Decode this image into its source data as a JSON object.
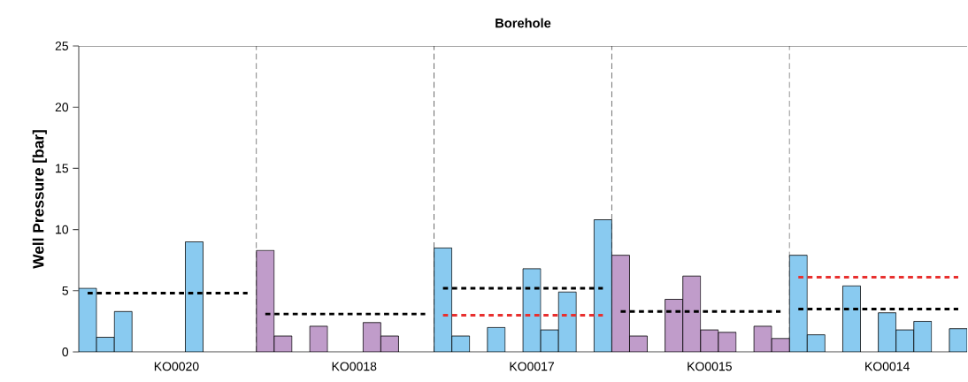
{
  "chart_data": {
    "type": "bar",
    "title": "Borehole",
    "ylabel": "Well Pressure [bar]",
    "categories": [
      null,
      null,
      null,
      null,
      null,
      "KO0020",
      null,
      null,
      null,
      null,
      null,
      null,
      null,
      null,
      null,
      "KO0018",
      null,
      null,
      null,
      null,
      null,
      null,
      null,
      null,
      null,
      "KO0017",
      null,
      null,
      null,
      null,
      null,
      null,
      null,
      null,
      null,
      "KO0015",
      null,
      null,
      null,
      null,
      null,
      null,
      null,
      null,
      null,
      "KO0014",
      null,
      null,
      null,
      null
    ],
    "ylim": [
      0,
      25
    ],
    "yticks": [
      0,
      5,
      10,
      15,
      20,
      25
    ],
    "series": [
      {
        "color": "#89caf0",
        "values": [
          5.2,
          1.2,
          3.3,
          null,
          null,
          null,
          9.0,
          null,
          null,
          null,
          null,
          null,
          null,
          null,
          null,
          null,
          null,
          null,
          null,
          null,
          8.5,
          1.3,
          null,
          2.0,
          null,
          6.8,
          1.8,
          4.9,
          null,
          10.8,
          null,
          null,
          null,
          null,
          null,
          null,
          null,
          null,
          null,
          null,
          7.9,
          1.4,
          null,
          5.4,
          null,
          3.2,
          1.8,
          2.5,
          null,
          1.9
        ]
      },
      {
        "color": "#c09cca",
        "values": [
          null,
          null,
          null,
          null,
          null,
          null,
          null,
          null,
          null,
          null,
          8.3,
          1.3,
          null,
          2.1,
          null,
          null,
          2.4,
          1.3,
          null,
          null,
          null,
          null,
          null,
          null,
          null,
          null,
          null,
          null,
          null,
          null,
          7.9,
          1.3,
          null,
          4.3,
          6.2,
          1.8,
          1.6,
          null,
          2.1,
          1.1,
          null,
          null,
          null,
          null,
          null,
          null,
          null,
          null,
          null,
          null
        ]
      },
      {
        "type": "line",
        "color": "#000000",
        "line_style": "dotted",
        "values": [
          4.8,
          4.8,
          4.8,
          4.8,
          4.8,
          4.8,
          4.8,
          4.8,
          4.8,
          4.8,
          null,
          null,
          null,
          null,
          null,
          null,
          null,
          null,
          null,
          null,
          null,
          null,
          null,
          null,
          null,
          null,
          null,
          null,
          null,
          null,
          null,
          null,
          null,
          null,
          null,
          null,
          null,
          null,
          null,
          null,
          null,
          null,
          null,
          null,
          null,
          null,
          null,
          null,
          null,
          null
        ]
      },
      {
        "type": "line",
        "color": "#000000",
        "line_style": "dotted",
        "values": [
          null,
          null,
          null,
          null,
          null,
          null,
          null,
          null,
          null,
          null,
          3.1,
          3.1,
          3.1,
          3.1,
          3.1,
          3.1,
          3.1,
          3.1,
          3.1,
          3.1,
          null,
          null,
          null,
          null,
          null,
          null,
          null,
          null,
          null,
          null,
          null,
          null,
          null,
          null,
          null,
          null,
          null,
          null,
          null,
          null,
          null,
          null,
          null,
          null,
          null,
          null,
          null,
          null,
          null,
          null
        ]
      },
      {
        "type": "line",
        "color": "#000000",
        "line_style": "dotted",
        "values": [
          null,
          null,
          null,
          null,
          null,
          null,
          null,
          null,
          null,
          null,
          null,
          null,
          null,
          null,
          null,
          null,
          null,
          null,
          null,
          null,
          5.2,
          5.2,
          5.2,
          5.2,
          5.2,
          5.2,
          5.2,
          5.2,
          5.2,
          5.2,
          null,
          null,
          null,
          null,
          null,
          null,
          null,
          null,
          null,
          null,
          null,
          null,
          null,
          null,
          null,
          null,
          null,
          null,
          null,
          null
        ]
      },
      {
        "type": "line",
        "color": "#e8302f",
        "line_style": "dotted",
        "values": [
          null,
          null,
          null,
          null,
          null,
          null,
          null,
          null,
          null,
          null,
          null,
          null,
          null,
          null,
          null,
          null,
          null,
          null,
          null,
          null,
          3.0,
          3.0,
          3.0,
          3.0,
          3.0,
          3.0,
          3.0,
          3.0,
          3.0,
          3.0,
          null,
          null,
          null,
          null,
          null,
          null,
          null,
          null,
          null,
          null,
          null,
          null,
          null,
          null,
          null,
          null,
          null,
          null,
          null,
          null
        ]
      },
      {
        "type": "line",
        "color": "#000000",
        "line_style": "dotted",
        "values": [
          null,
          null,
          null,
          null,
          null,
          null,
          null,
          null,
          null,
          null,
          null,
          null,
          null,
          null,
          null,
          null,
          null,
          null,
          null,
          null,
          null,
          null,
          null,
          null,
          null,
          null,
          null,
          null,
          null,
          null,
          3.3,
          3.3,
          3.3,
          3.3,
          3.3,
          3.3,
          3.3,
          3.3,
          3.3,
          3.3,
          null,
          null,
          null,
          null,
          null,
          null,
          null,
          null,
          null,
          null
        ]
      },
      {
        "type": "line",
        "color": "#000000",
        "line_style": "dotted",
        "values": [
          null,
          null,
          null,
          null,
          null,
          null,
          null,
          null,
          null,
          null,
          null,
          null,
          null,
          null,
          null,
          null,
          null,
          null,
          null,
          null,
          null,
          null,
          null,
          null,
          null,
          null,
          null,
          null,
          null,
          null,
          null,
          null,
          null,
          null,
          null,
          null,
          null,
          null,
          null,
          null,
          3.5,
          3.5,
          3.5,
          3.5,
          3.5,
          3.5,
          3.5,
          3.5,
          3.5,
          3.5
        ]
      },
      {
        "type": "line",
        "color": "#e8302f",
        "line_style": "dotted",
        "values": [
          null,
          null,
          null,
          null,
          null,
          null,
          null,
          null,
          null,
          null,
          null,
          null,
          null,
          null,
          null,
          null,
          null,
          null,
          null,
          null,
          null,
          null,
          null,
          null,
          null,
          null,
          null,
          null,
          null,
          null,
          null,
          null,
          null,
          null,
          null,
          null,
          null,
          null,
          null,
          null,
          6.1,
          6.1,
          6.1,
          6.1,
          6.1,
          6.1,
          6.1,
          6.1,
          6.1,
          6.1
        ]
      }
    ],
    "grid": "x"
  }
}
